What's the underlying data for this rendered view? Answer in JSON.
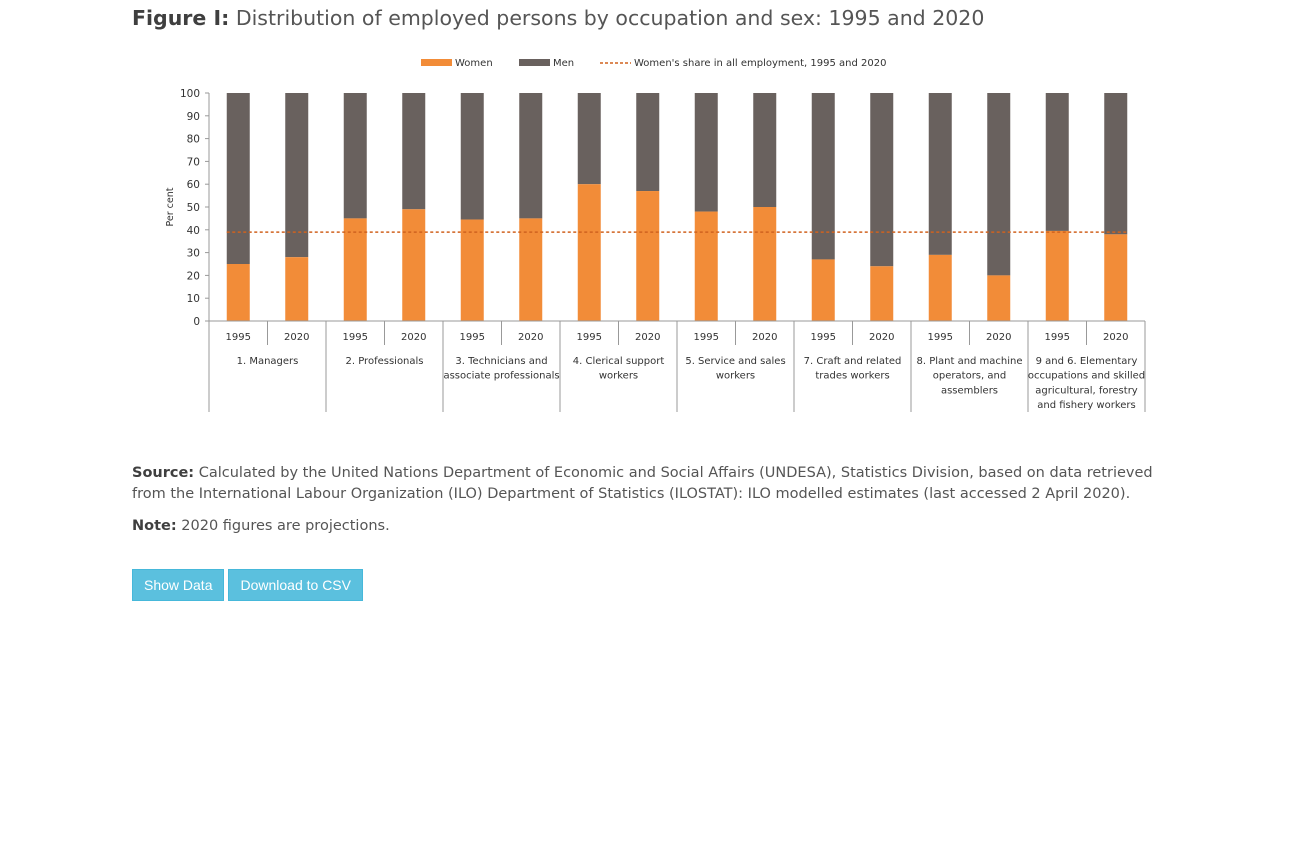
{
  "figure": {
    "label": "Figure I:",
    "title": "Distribution of employed persons by occupation and sex: 1995 and 2020"
  },
  "colors": {
    "women": "#f28c38",
    "men": "#69615e",
    "share_line": "#d0621e",
    "button": "#5bc0de"
  },
  "chart_data": {
    "type": "bar",
    "stacked": true,
    "ylabel": "Per cent",
    "ylim": [
      0,
      100
    ],
    "yticks": [
      0,
      10,
      20,
      30,
      40,
      50,
      60,
      70,
      80,
      90,
      100
    ],
    "legend_position": "top",
    "legend": [
      "Women",
      "Men",
      "Women's share in all employment, 1995 and 2020"
    ],
    "groups": [
      {
        "label_lines": [
          "1. Managers"
        ],
        "years": [
          "1995",
          "2020"
        ]
      },
      {
        "label_lines": [
          "2. Professionals"
        ],
        "years": [
          "1995",
          "2020"
        ]
      },
      {
        "label_lines": [
          "3. Technicians and",
          "associate professionals"
        ],
        "years": [
          "1995",
          "2020"
        ]
      },
      {
        "label_lines": [
          "4. Clerical support",
          "workers"
        ],
        "years": [
          "1995",
          "2020"
        ]
      },
      {
        "label_lines": [
          "5. Service and sales",
          "workers"
        ],
        "years": [
          "1995",
          "2020"
        ]
      },
      {
        "label_lines": [
          "7. Craft and related",
          "trades workers"
        ],
        "years": [
          "1995",
          "2020"
        ]
      },
      {
        "label_lines": [
          "8. Plant and machine",
          "operators, and",
          "assemblers"
        ],
        "years": [
          "1995",
          "2020"
        ]
      },
      {
        "label_lines": [
          "9 and 6. Elementary",
          "occupations and skilled",
          "agricultural, forestry",
          "and fishery workers"
        ],
        "years": [
          "1995",
          "2020"
        ]
      }
    ],
    "series": [
      {
        "name": "Women",
        "values": [
          25,
          28,
          45,
          49,
          44.5,
          45,
          60,
          57,
          48,
          50,
          27,
          24,
          29,
          20,
          39.5,
          38
        ]
      },
      {
        "name": "Men",
        "values": [
          75,
          72,
          55,
          51,
          55.5,
          55,
          40,
          43,
          52,
          50,
          73,
          76,
          71,
          80,
          60.5,
          62
        ]
      }
    ],
    "reference_line": {
      "name": "Women's share in all employment, 1995 and 2020",
      "value": 39
    }
  },
  "notes": {
    "source_label": "Source:",
    "source_text": "Calculated by the United Nations Department of Economic and Social Affairs (UNDESA), Statistics Division, based on data retrieved from the International Labour Organization (ILO) Department of Statistics (ILOSTAT): ILO modelled estimates (last accessed 2 April 2020).",
    "note_label": "Note:",
    "note_text": "2020 figures are projections."
  },
  "buttons": {
    "show_data": "Show Data",
    "download_csv": "Download to CSV"
  }
}
